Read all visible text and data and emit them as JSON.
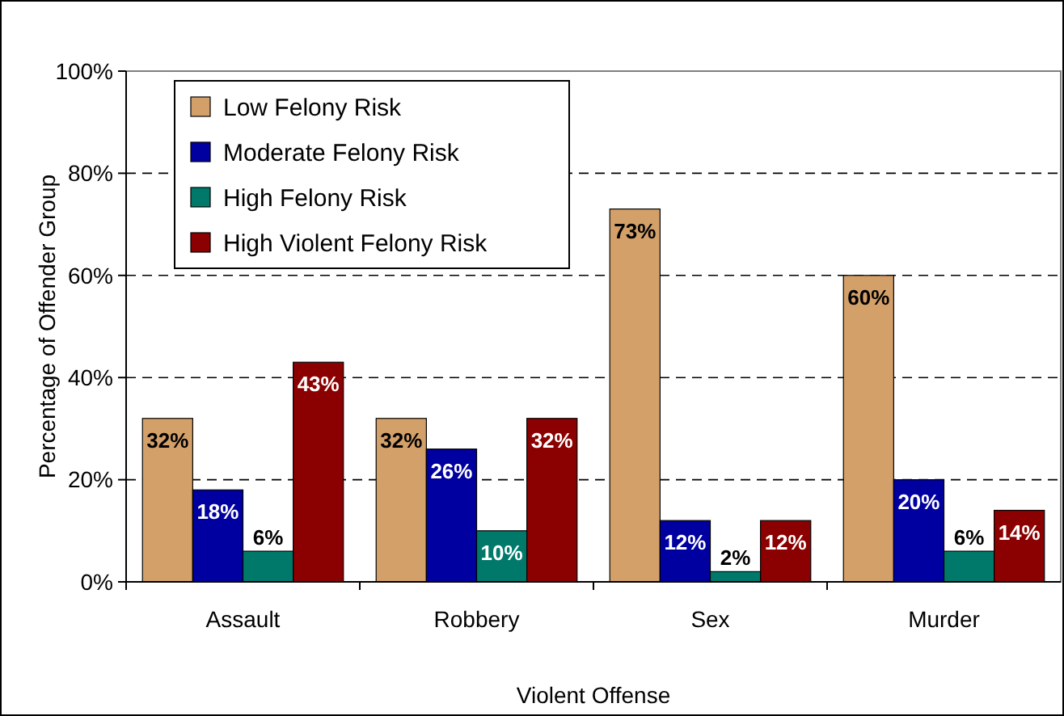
{
  "chart_data": {
    "type": "bar",
    "xlabel": "Violent Offense",
    "ylabel": "Percentage of Offender Group",
    "categories": [
      "Assault",
      "Robbery",
      "Sex",
      "Murder"
    ],
    "series": [
      {
        "name": "Low Felony Risk",
        "color": "#d4a06a",
        "values": [
          32,
          32,
          73,
          60
        ],
        "value_labels": [
          "32%",
          "32%",
          "73%",
          "60%"
        ]
      },
      {
        "name": "Moderate Felony Risk",
        "color": "#0000a0",
        "values": [
          18,
          26,
          12,
          20
        ],
        "value_labels": [
          "18%",
          "26%",
          "12%",
          "20%"
        ]
      },
      {
        "name": "High Felony Risk",
        "color": "#00796b",
        "values": [
          6,
          10,
          2,
          6
        ],
        "value_labels": [
          "6%",
          "10%",
          "2%",
          "6%"
        ]
      },
      {
        "name": "High Violent Felony Risk",
        "color": "#8b0000",
        "values": [
          43,
          32,
          12,
          14
        ],
        "value_labels": [
          "43%",
          "32%",
          "12%",
          "14%"
        ]
      }
    ],
    "ylim": [
      0,
      100
    ],
    "yticks": [
      {
        "value": 0,
        "label": "0%"
      },
      {
        "value": 20,
        "label": "20%"
      },
      {
        "value": 40,
        "label": "40%"
      },
      {
        "value": 60,
        "label": "60%"
      },
      {
        "value": 80,
        "label": "80%"
      },
      {
        "value": 100,
        "label": "100%"
      }
    ],
    "grid": "y",
    "legend": "top left"
  }
}
